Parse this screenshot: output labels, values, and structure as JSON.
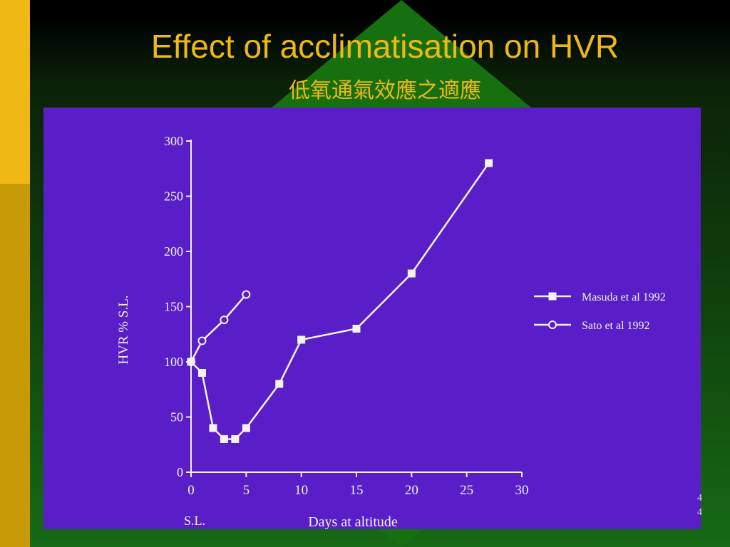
{
  "slide": {
    "title": "Effect of acclimatisation on HVR",
    "subtitle": "低氧通氣效應之適應",
    "page_marks": [
      "4",
      "4"
    ]
  },
  "colors": {
    "title": "#f0b815",
    "chart_background": "#5a1ec8",
    "chart_ink": "#f2f2f2"
  },
  "chart_data": {
    "type": "line",
    "title": "",
    "xlabel": "Days at altitude",
    "ylabel": "HVR % S.L.",
    "x_extra_label": "S.L.",
    "xlim": [
      0,
      30
    ],
    "ylim": [
      0,
      300
    ],
    "x_ticks": [
      0,
      5,
      10,
      15,
      20,
      25,
      30
    ],
    "y_ticks": [
      0,
      50,
      100,
      150,
      200,
      250,
      300
    ],
    "grid": false,
    "legend_position": "right",
    "series": [
      {
        "name": "Masuda et al 1992",
        "marker": "square",
        "x": [
          0,
          1,
          2,
          3,
          4,
          5,
          8,
          10,
          15,
          20,
          27
        ],
        "y": [
          100,
          90,
          40,
          30,
          30,
          40,
          80,
          120,
          130,
          180,
          280
        ]
      },
      {
        "name": "Sato et al 1992",
        "marker": "circle",
        "x": [
          0,
          1,
          3,
          5
        ],
        "y": [
          100,
          119,
          138,
          161
        ]
      }
    ]
  }
}
